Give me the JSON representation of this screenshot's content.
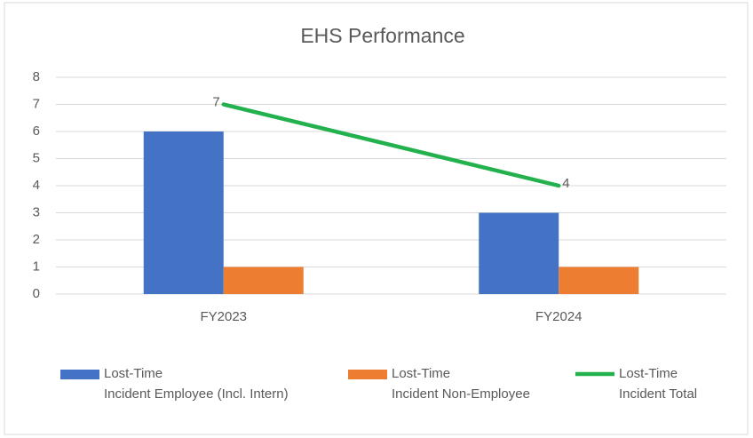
{
  "chart_data": {
    "type": "bar_line",
    "title": "EHS Performance",
    "categories": [
      "FY2023",
      "FY2024"
    ],
    "series": [
      {
        "name": "Lost-Time\nIncident Employee (Incl. Intern)",
        "type": "bar",
        "color": "#4472c4",
        "values": [
          6,
          3
        ]
      },
      {
        "name": "Lost-Time\nIncident Non-Employee",
        "type": "bar",
        "color": "#ed7d31",
        "values": [
          1,
          1
        ]
      },
      {
        "name": "Lost-Time\nIncident Total",
        "type": "line",
        "color": "#22b14c",
        "values": [
          7,
          4
        ]
      }
    ],
    "ylim": [
      0,
      8
    ],
    "yticks": [
      0,
      1,
      2,
      3,
      4,
      5,
      6,
      7,
      8
    ],
    "grid": true,
    "legend": "bottom"
  }
}
